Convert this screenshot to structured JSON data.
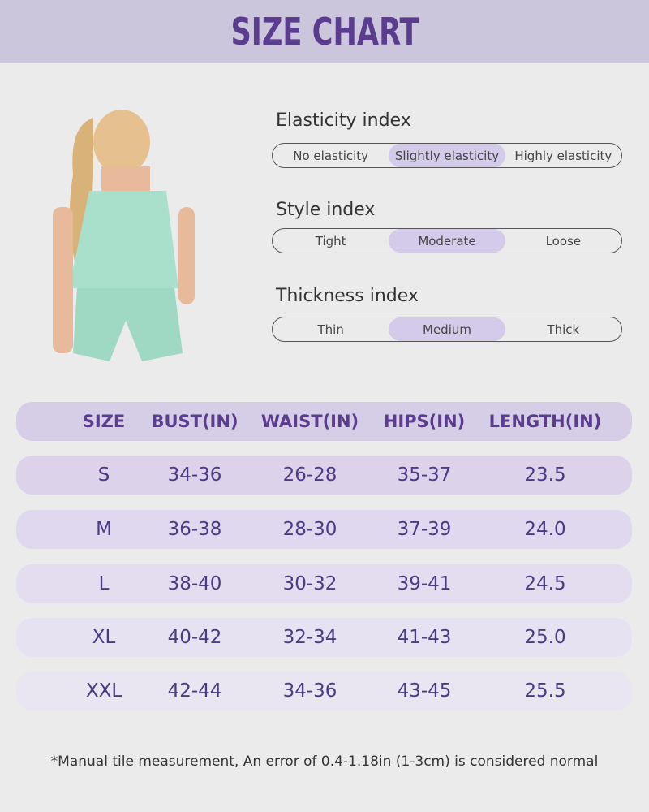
{
  "header": {
    "title": "SIZE CHART"
  },
  "indices": [
    {
      "label": "Elasticity index",
      "options": [
        "No elasticity",
        "Slightly elasticity",
        "Highly elasticity"
      ],
      "selected": 1
    },
    {
      "label": "Style index",
      "options": [
        "Tight",
        "Moderate",
        "Loose"
      ],
      "selected": 1
    },
    {
      "label": "Thickness index",
      "options": [
        "Thin",
        "Medium",
        "Thick"
      ],
      "selected": 1
    }
  ],
  "table": {
    "headers": [
      "SIZE",
      "BUST(IN)",
      "WAIST(IN)",
      "HIPS(IN)",
      "LENGTH(IN)"
    ],
    "rows": [
      [
        "S",
        "34-36",
        "26-28",
        "35-37",
        "23.5"
      ],
      [
        "M",
        "36-38",
        "28-30",
        "37-39",
        "24.0"
      ],
      [
        "L",
        "38-40",
        "30-32",
        "39-41",
        "24.5"
      ],
      [
        "XL",
        "40-42",
        "32-34",
        "41-43",
        "25.0"
      ],
      [
        "XXL",
        "42-44",
        "34-36",
        "43-45",
        "25.5"
      ]
    ]
  },
  "note": "*Manual tile measurement, An error of 0.4-1.18in (1-3cm) is considered normal"
}
